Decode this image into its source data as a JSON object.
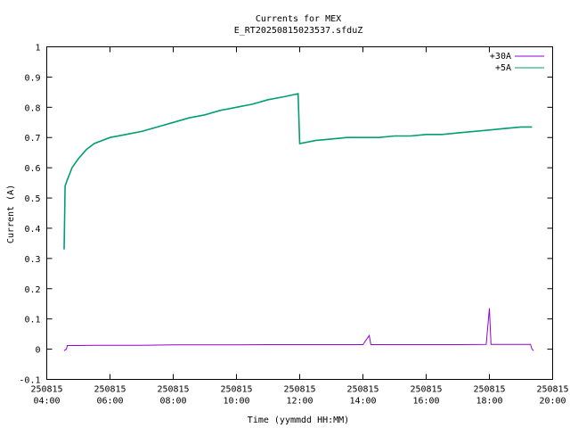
{
  "chart_data": {
    "type": "line",
    "title": "Currents for MEX",
    "subtitle": "E_RT20250815023537.sfduZ",
    "xlabel": "Time (yymmdd HH:MM)",
    "ylabel": "Current (A)",
    "xlim": [
      "2025-08-15 04:00",
      "2025-08-15 20:00"
    ],
    "ylim": [
      -0.1,
      1.0
    ],
    "yticks": [
      -0.1,
      0,
      0.1,
      0.2,
      0.3,
      0.4,
      0.5,
      0.6,
      0.7,
      0.8,
      0.9,
      1
    ],
    "xticks": [
      {
        "date": "250815",
        "time": "04:00",
        "hour": 4
      },
      {
        "date": "250815",
        "time": "06:00",
        "hour": 6
      },
      {
        "date": "250815",
        "time": "08:00",
        "hour": 8
      },
      {
        "date": "250815",
        "time": "10:00",
        "hour": 10
      },
      {
        "date": "250815",
        "time": "12:00",
        "hour": 12
      },
      {
        "date": "250815",
        "time": "14:00",
        "hour": 14
      },
      {
        "date": "250815",
        "time": "16:00",
        "hour": 16
      },
      {
        "date": "250815",
        "time": "18:00",
        "hour": 18
      },
      {
        "date": "250815",
        "time": "20:00",
        "hour": 20
      }
    ],
    "grid": false,
    "legend_position": "top-right",
    "series": [
      {
        "name": "+30A",
        "color": "#9400d3",
        "points": [
          [
            4.55,
            -0.005
          ],
          [
            4.62,
            0.0
          ],
          [
            4.65,
            0.012
          ],
          [
            5.0,
            0.012
          ],
          [
            5.5,
            0.013
          ],
          [
            6.0,
            0.013
          ],
          [
            7.0,
            0.013
          ],
          [
            8.0,
            0.014
          ],
          [
            9.0,
            0.014
          ],
          [
            10.0,
            0.014
          ],
          [
            11.0,
            0.015
          ],
          [
            12.0,
            0.015
          ],
          [
            13.0,
            0.015
          ],
          [
            14.0,
            0.015
          ],
          [
            14.2,
            0.045
          ],
          [
            14.25,
            0.015
          ],
          [
            15.0,
            0.015
          ],
          [
            16.0,
            0.015
          ],
          [
            17.0,
            0.015
          ],
          [
            17.9,
            0.016
          ],
          [
            18.0,
            0.135
          ],
          [
            18.05,
            0.016
          ],
          [
            19.0,
            0.016
          ],
          [
            19.3,
            0.016
          ],
          [
            19.35,
            0.0
          ],
          [
            19.4,
            -0.005
          ]
        ]
      },
      {
        "name": "+5A",
        "color": "#009e73",
        "points": [
          [
            4.55,
            0.33
          ],
          [
            4.58,
            0.54
          ],
          [
            4.65,
            0.56
          ],
          [
            4.8,
            0.6
          ],
          [
            5.0,
            0.63
          ],
          [
            5.25,
            0.66
          ],
          [
            5.5,
            0.68
          ],
          [
            6.0,
            0.7
          ],
          [
            6.5,
            0.71
          ],
          [
            7.0,
            0.72
          ],
          [
            7.5,
            0.735
          ],
          [
            8.0,
            0.75
          ],
          [
            8.5,
            0.765
          ],
          [
            9.0,
            0.775
          ],
          [
            9.5,
            0.79
          ],
          [
            10.0,
            0.8
          ],
          [
            10.5,
            0.81
          ],
          [
            11.0,
            0.825
          ],
          [
            11.5,
            0.835
          ],
          [
            11.95,
            0.845
          ],
          [
            12.0,
            0.68
          ],
          [
            12.5,
            0.69
          ],
          [
            13.0,
            0.695
          ],
          [
            13.5,
            0.7
          ],
          [
            14.0,
            0.7
          ],
          [
            14.5,
            0.7
          ],
          [
            15.0,
            0.705
          ],
          [
            15.5,
            0.705
          ],
          [
            16.0,
            0.71
          ],
          [
            16.5,
            0.71
          ],
          [
            17.0,
            0.715
          ],
          [
            17.5,
            0.72
          ],
          [
            18.0,
            0.725
          ],
          [
            18.5,
            0.73
          ],
          [
            19.0,
            0.735
          ],
          [
            19.35,
            0.735
          ]
        ]
      }
    ]
  }
}
